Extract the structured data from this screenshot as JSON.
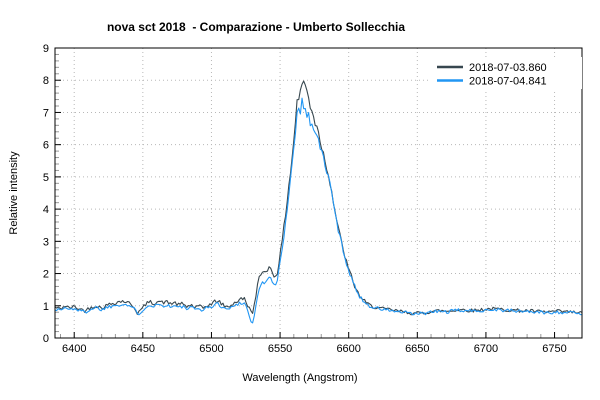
{
  "chart_data": {
    "type": "line",
    "title": "nova sct 2018  - Comparazione - Umberto Sollecchia",
    "xlabel": "Wavelength (Angstrom)",
    "ylabel": "Relative intensity",
    "xlim": [
      6386,
      6770
    ],
    "ylim": [
      0,
      9
    ],
    "x_major_ticks": [
      6400,
      6450,
      6500,
      6550,
      6600,
      6650,
      6700,
      6750
    ],
    "x_minor_step": 10,
    "y_major_ticks": [
      0,
      1,
      2,
      3,
      4,
      5,
      6,
      7,
      8,
      9
    ],
    "y_minor_step": 0.2,
    "grid": true,
    "grid_style": "dotted",
    "legend_position": "top-right",
    "series": [
      {
        "name": "2018-07-03.860",
        "color": "#37474f",
        "seed": 42,
        "noise_amp": 0.045,
        "points": [
          [
            6386,
            0.95
          ],
          [
            6390,
            0.9
          ],
          [
            6393,
            1.0
          ],
          [
            6396,
            0.93
          ],
          [
            6400,
            0.97
          ],
          [
            6404,
            0.9
          ],
          [
            6408,
            0.85
          ],
          [
            6412,
            0.95
          ],
          [
            6416,
            1.0
          ],
          [
            6420,
            0.93
          ],
          [
            6424,
            1.02
          ],
          [
            6428,
            1.08
          ],
          [
            6432,
            1.12
          ],
          [
            6436,
            1.15
          ],
          [
            6440,
            1.08
          ],
          [
            6443,
            1.0
          ],
          [
            6446,
            0.78
          ],
          [
            6449,
            0.88
          ],
          [
            6452,
            1.05
          ],
          [
            6455,
            1.12
          ],
          [
            6458,
            1.08
          ],
          [
            6461,
            1.15
          ],
          [
            6464,
            1.1
          ],
          [
            6467,
            1.12
          ],
          [
            6470,
            1.07
          ],
          [
            6473,
            1.1
          ],
          [
            6476,
            1.02
          ],
          [
            6479,
            1.07
          ],
          [
            6482,
            0.97
          ],
          [
            6485,
            1.03
          ],
          [
            6488,
            0.95
          ],
          [
            6491,
            0.98
          ],
          [
            6494,
            0.93
          ],
          [
            6497,
            1.02
          ],
          [
            6500,
            1.05
          ],
          [
            6503,
            1.15
          ],
          [
            6506,
            1.12
          ],
          [
            6509,
            1.0
          ],
          [
            6512,
            0.95
          ],
          [
            6515,
            1.05
          ],
          [
            6518,
            1.12
          ],
          [
            6521,
            1.2
          ],
          [
            6524,
            1.22
          ],
          [
            6526,
            1.05
          ],
          [
            6528,
            0.88
          ],
          [
            6530,
            0.82
          ],
          [
            6532,
            1.15
          ],
          [
            6534,
            1.75
          ],
          [
            6536,
            2.0
          ],
          [
            6538,
            2.05
          ],
          [
            6540,
            2.12
          ],
          [
            6542,
            2.18
          ],
          [
            6544,
            2.1
          ],
          [
            6546,
            1.88
          ],
          [
            6548,
            2.05
          ],
          [
            6550,
            2.55
          ],
          [
            6552,
            3.15
          ],
          [
            6554,
            3.85
          ],
          [
            6556,
            4.6
          ],
          [
            6558,
            5.3
          ],
          [
            6560,
            6.15
          ],
          [
            6561,
            6.6
          ],
          [
            6562,
            7.2
          ],
          [
            6563,
            7.55
          ],
          [
            6564,
            7.35
          ],
          [
            6565,
            7.85
          ],
          [
            6566,
            7.75
          ],
          [
            6567,
            8.05
          ],
          [
            6568,
            7.95
          ],
          [
            6569,
            7.7
          ],
          [
            6570,
            7.6
          ],
          [
            6571,
            7.4
          ],
          [
            6572,
            7.1
          ],
          [
            6573,
            7.15
          ],
          [
            6574,
            7.0
          ],
          [
            6575,
            6.8
          ],
          [
            6576,
            6.55
          ],
          [
            6577,
            6.65
          ],
          [
            6578,
            6.35
          ],
          [
            6580,
            6.0
          ],
          [
            6582,
            5.65
          ],
          [
            6584,
            5.3
          ],
          [
            6586,
            4.95
          ],
          [
            6588,
            4.45
          ],
          [
            6590,
            3.95
          ],
          [
            6592,
            3.5
          ],
          [
            6594,
            3.1
          ],
          [
            6596,
            2.75
          ],
          [
            6598,
            2.42
          ],
          [
            6600,
            2.12
          ],
          [
            6602,
            1.9
          ],
          [
            6604,
            1.65
          ],
          [
            6606,
            1.45
          ],
          [
            6608,
            1.32
          ],
          [
            6610,
            1.2
          ],
          [
            6613,
            1.08
          ],
          [
            6616,
            1.0
          ],
          [
            6620,
            0.95
          ],
          [
            6625,
            0.9
          ],
          [
            6630,
            0.88
          ],
          [
            6636,
            0.83
          ],
          [
            6642,
            0.8
          ],
          [
            6648,
            0.76
          ],
          [
            6654,
            0.78
          ],
          [
            6660,
            0.82
          ],
          [
            6666,
            0.85
          ],
          [
            6672,
            0.83
          ],
          [
            6678,
            0.87
          ],
          [
            6684,
            0.88
          ],
          [
            6690,
            0.85
          ],
          [
            6696,
            0.88
          ],
          [
            6702,
            0.9
          ],
          [
            6708,
            0.9
          ],
          [
            6714,
            0.88
          ],
          [
            6720,
            0.86
          ],
          [
            6726,
            0.85
          ],
          [
            6732,
            0.84
          ],
          [
            6738,
            0.82
          ],
          [
            6744,
            0.8
          ],
          [
            6750,
            0.83
          ],
          [
            6756,
            0.82
          ],
          [
            6762,
            0.8
          ],
          [
            6770,
            0.78
          ]
        ]
      },
      {
        "name": "2018-07-04.841",
        "color": "#2196f3",
        "seed": 1337,
        "noise_amp": 0.045,
        "points": [
          [
            6386,
            0.9
          ],
          [
            6390,
            0.86
          ],
          [
            6393,
            0.95
          ],
          [
            6396,
            0.88
          ],
          [
            6400,
            0.92
          ],
          [
            6404,
            0.85
          ],
          [
            6408,
            0.8
          ],
          [
            6412,
            0.9
          ],
          [
            6416,
            0.95
          ],
          [
            6420,
            0.88
          ],
          [
            6424,
            0.96
          ],
          [
            6428,
            1.0
          ],
          [
            6432,
            1.04
          ],
          [
            6436,
            1.06
          ],
          [
            6440,
            1.0
          ],
          [
            6443,
            0.95
          ],
          [
            6446,
            0.74
          ],
          [
            6449,
            0.82
          ],
          [
            6452,
            0.97
          ],
          [
            6455,
            1.03
          ],
          [
            6458,
            1.0
          ],
          [
            6461,
            1.05
          ],
          [
            6464,
            1.0
          ],
          [
            6467,
            1.03
          ],
          [
            6470,
            0.98
          ],
          [
            6473,
            1.0
          ],
          [
            6476,
            0.94
          ],
          [
            6479,
            0.98
          ],
          [
            6482,
            0.9
          ],
          [
            6485,
            0.95
          ],
          [
            6488,
            0.88
          ],
          [
            6491,
            0.92
          ],
          [
            6494,
            0.87
          ],
          [
            6497,
            0.95
          ],
          [
            6500,
            0.97
          ],
          [
            6503,
            1.06
          ],
          [
            6506,
            1.03
          ],
          [
            6509,
            0.93
          ],
          [
            6512,
            0.88
          ],
          [
            6515,
            0.97
          ],
          [
            6518,
            1.03
          ],
          [
            6521,
            1.1
          ],
          [
            6524,
            1.1
          ],
          [
            6526,
            0.9
          ],
          [
            6528,
            0.6
          ],
          [
            6530,
            0.45
          ],
          [
            6532,
            0.85
          ],
          [
            6534,
            1.45
          ],
          [
            6536,
            1.65
          ],
          [
            6538,
            1.72
          ],
          [
            6540,
            1.8
          ],
          [
            6542,
            1.86
          ],
          [
            6544,
            1.78
          ],
          [
            6546,
            1.58
          ],
          [
            6548,
            1.8
          ],
          [
            6550,
            2.3
          ],
          [
            6552,
            2.92
          ],
          [
            6554,
            3.6
          ],
          [
            6556,
            4.35
          ],
          [
            6558,
            5.05
          ],
          [
            6560,
            5.9
          ],
          [
            6561,
            6.35
          ],
          [
            6562,
            6.9
          ],
          [
            6563,
            7.1
          ],
          [
            6564,
            7.25
          ],
          [
            6565,
            7.05
          ],
          [
            6566,
            7.35
          ],
          [
            6567,
            7.28
          ],
          [
            6568,
            7.1
          ],
          [
            6569,
            6.95
          ],
          [
            6570,
            6.88
          ],
          [
            6571,
            6.9
          ],
          [
            6572,
            6.7
          ],
          [
            6573,
            6.75
          ],
          [
            6574,
            6.6
          ],
          [
            6575,
            6.45
          ],
          [
            6576,
            6.25
          ],
          [
            6577,
            6.35
          ],
          [
            6578,
            6.1
          ],
          [
            6580,
            5.8
          ],
          [
            6582,
            5.5
          ],
          [
            6584,
            5.2
          ],
          [
            6586,
            4.85
          ],
          [
            6588,
            4.38
          ],
          [
            6590,
            3.9
          ],
          [
            6592,
            3.45
          ],
          [
            6594,
            3.05
          ],
          [
            6596,
            2.72
          ],
          [
            6598,
            2.4
          ],
          [
            6600,
            2.1
          ],
          [
            6602,
            1.88
          ],
          [
            6604,
            1.63
          ],
          [
            6606,
            1.43
          ],
          [
            6608,
            1.3
          ],
          [
            6610,
            1.18
          ],
          [
            6613,
            1.06
          ],
          [
            6616,
            0.98
          ],
          [
            6620,
            0.93
          ],
          [
            6625,
            0.88
          ],
          [
            6630,
            0.86
          ],
          [
            6636,
            0.81
          ],
          [
            6642,
            0.78
          ],
          [
            6648,
            0.74
          ],
          [
            6654,
            0.76
          ],
          [
            6660,
            0.8
          ],
          [
            6666,
            0.83
          ],
          [
            6672,
            0.81
          ],
          [
            6678,
            0.85
          ],
          [
            6684,
            0.86
          ],
          [
            6690,
            0.83
          ],
          [
            6696,
            0.86
          ],
          [
            6702,
            0.88
          ],
          [
            6708,
            0.88
          ],
          [
            6714,
            0.86
          ],
          [
            6720,
            0.84
          ],
          [
            6726,
            0.83
          ],
          [
            6732,
            0.82
          ],
          [
            6738,
            0.8
          ],
          [
            6744,
            0.78
          ],
          [
            6750,
            0.81
          ],
          [
            6756,
            0.8
          ],
          [
            6762,
            0.78
          ],
          [
            6770,
            0.76
          ]
        ]
      }
    ]
  },
  "colors": {
    "background": "#ffffff",
    "axis": "#000000",
    "grid": "#b8b8b8",
    "minor_tick": "#999999",
    "text": "#000000"
  }
}
